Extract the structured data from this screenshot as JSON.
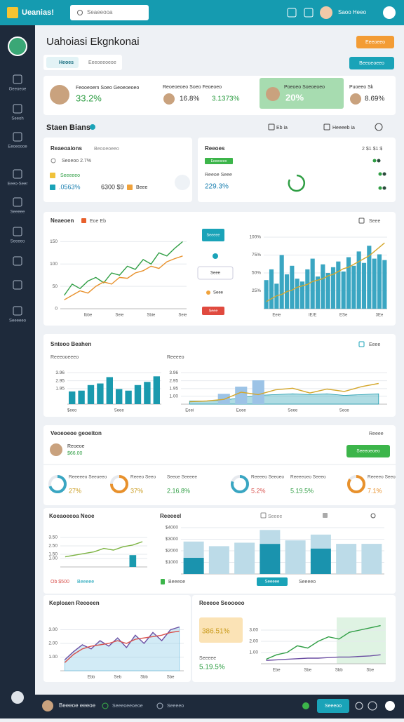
{
  "header": {
    "app_name": "Ueanias!",
    "search": "Seaeeooa",
    "user": "Saoo Heeo"
  },
  "sidebar": {
    "items": [
      "Geeoeoe",
      "Seeoh",
      "Eeoeoooe",
      "Eeeo-Seer",
      "Seeeee",
      "Seeeeo",
      "Seeeeeo"
    ]
  },
  "page": {
    "title": "Uahoiasi Ekgnkonai",
    "button_primary": "Eeeoeeo",
    "button_secondary": "Beeoeoeeo",
    "tabs": [
      "Heoes",
      "Eeeoeeoeoe"
    ]
  },
  "kpis": [
    {
      "label": "Feooeoem Soeo Geoeoeoeo",
      "value": "33.2%"
    },
    {
      "label": "Reoeoeoeo Soeo Feoeoeo",
      "value": "16.8%",
      "value2": "3.1373%"
    },
    {
      "label": "Poeoeo Soeoeoeo",
      "value": "20%"
    },
    {
      "label": "Puoeeo Sk",
      "value": "8.69%"
    }
  ],
  "status": {
    "title": "Staen Bians",
    "filter_1": "Eb ia",
    "filter_2": "Heeeeb ia"
  },
  "relations": {
    "title": "Reaeoaions",
    "subtitle": "Beooeoeeo",
    "row_1": "Seoeoo 2.7%",
    "row_2": "Seeeeeo",
    "value": ".0563%",
    "amount": "6300 $9",
    "extra": "Beee"
  },
  "reports": {
    "title": "Reeoes",
    "counts": "2 $1 $1 $",
    "badge": "Eeeeoeeo",
    "label": "Reeoe Seee",
    "value": "229.3%"
  },
  "overview": {
    "title": "Neaeoen",
    "legend": "Eoe Eb",
    "action": "Seee",
    "side": [
      "Seeeee",
      "Seee",
      "Seee",
      "Seee"
    ],
    "chart_a": {
      "type": "line",
      "ylim": [
        0,
        160
      ],
      "yticks": [
        0,
        50,
        100,
        150
      ],
      "categories": [
        null,
        null,
        null,
        "Ibbe",
        null,
        null,
        null,
        "Seie",
        null,
        null,
        null,
        "Sbie",
        null,
        null,
        null,
        "Seie"
      ],
      "series": [
        {
          "type": "line",
          "color": "#2f9e44",
          "values": [
            30,
            55,
            45,
            62,
            70,
            58,
            80,
            75,
            95,
            88,
            110,
            100,
            125,
            118,
            135,
            150
          ]
        },
        {
          "type": "line",
          "color": "#e8912c",
          "values": [
            20,
            30,
            40,
            35,
            50,
            60,
            55,
            70,
            68,
            80,
            85,
            95,
            90,
            105,
            112,
            118
          ]
        }
      ]
    },
    "chart_b": {
      "type": "bar",
      "ylim": [
        0,
        100
      ],
      "yticks": [
        {
          "value": 25,
          "label": "25%"
        },
        {
          "value": 50,
          "label": "50%"
        },
        {
          "value": 75,
          "label": "75%"
        },
        {
          "value": 100,
          "label": "100%"
        }
      ],
      "categories": [
        null,
        null,
        "Eeie",
        null,
        null,
        null,
        null,
        null,
        null,
        "IE/E",
        null,
        null,
        null,
        null,
        null,
        "ESe",
        null,
        null,
        null,
        null,
        null,
        null,
        "3Ee",
        null
      ],
      "series": [
        {
          "type": "bar",
          "color": "#3aa6c2",
          "values": [
            40,
            55,
            35,
            75,
            48,
            60,
            42,
            38,
            55,
            70,
            45,
            62,
            50,
            58,
            66,
            52,
            72,
            60,
            80,
            64,
            88,
            70,
            76,
            68
          ]
        },
        {
          "type": "line",
          "color": "#d4a72c",
          "values": [
            10,
            14,
            18,
            20,
            24,
            26,
            30,
            32,
            34,
            38,
            40,
            42,
            46,
            48,
            52,
            56,
            58,
            62,
            66,
            70,
            74,
            80,
            86,
            92
          ]
        }
      ]
    }
  },
  "section2": {
    "title": "Snteoo Beahen",
    "action": "Eeee",
    "chart_c": {
      "title": "Reeeooeeeo",
      "type": "bar",
      "ylim": [
        0,
        4.5
      ],
      "yticks": [
        1.95,
        2.95,
        3.96
      ],
      "categories": [
        "$eeo",
        null,
        null,
        null,
        null,
        "Seee",
        null,
        null,
        null,
        null
      ],
      "series": [
        {
          "type": "bar",
          "color": "#1a9aae",
          "values": [
            1.6,
            1.7,
            2.4,
            2.6,
            3.4,
            1.9,
            1.7,
            2.4,
            2.8,
            3.5
          ]
        }
      ]
    },
    "chart_e": {
      "title": "Reeeeo",
      "type": "line",
      "ylim": [
        0,
        4.5
      ],
      "yticks": [
        {
          "value": 1,
          "label": "1.00"
        },
        1.95,
        2.95,
        3.96
      ],
      "categories": [
        "Eeei",
        null,
        null,
        "Eoee",
        null,
        null,
        "Seee",
        null,
        null,
        "Seoe",
        null,
        null
      ],
      "series": [
        {
          "type": "area",
          "color": "#1a9aae",
          "values": [
            0.4,
            0.4,
            0.5,
            0.8,
            1.1,
            1.2,
            1.3,
            1.2,
            1.3,
            1.1,
            1.2,
            1.3
          ]
        },
        {
          "type": "bar",
          "color": "#9cc3e6",
          "values": [
            null,
            null,
            1.3,
            2.2,
            3.0,
            null,
            null,
            null,
            null,
            null,
            null,
            null
          ]
        },
        {
          "type": "line",
          "color": "#d4a72c",
          "values": [
            0.3,
            0.4,
            0.6,
            1.5,
            1.2,
            1.8,
            2.0,
            1.4,
            1.9,
            1.6,
            2.2,
            2.6
          ]
        }
      ]
    }
  },
  "section3": {
    "title": "Veoeoeoe geoeiton",
    "action": "Reeee",
    "person": "Reoeoe",
    "amount": "$66.00",
    "button": "Seeeoeoeo",
    "donuts": [
      {
        "label": "Reeeeeo Seeoeeo",
        "value": "27%",
        "fill": 70,
        "color": "#3aa6c2"
      },
      {
        "label": "Reeeo Seeo",
        "value": "37%",
        "fill": 75,
        "color": "#e8912c"
      },
      {
        "label": "Reeeeo Seeoeo",
        "value": "5.2%",
        "fill": 80,
        "color": "#3aa6c2"
      },
      {
        "label": "Reeeeo Seeo",
        "value": "7.1%",
        "fill": 85,
        "color": "#e8912c"
      }
    ],
    "stats": [
      {
        "label": "Seeoe Seeeee",
        "value": "2.16.8%"
      },
      {
        "label": "Reeeeoeo Seeeo",
        "value": "5.19.5%"
      }
    ]
  },
  "section4": {
    "chart_f": {
      "title": "Koeaoeeoa Neoe",
      "type": "line",
      "ylim": [
        0,
        4
      ],
      "yticks": [
        {
          "value": 1,
          "label": "1.00"
        },
        {
          "value": 1.5,
          "label": "1.50"
        },
        {
          "value": 2.5,
          "label": "2.50"
        },
        {
          "value": 3.5,
          "label": "3.50"
        }
      ],
      "categories": [
        null,
        null,
        null,
        null,
        null,
        null,
        null,
        null,
        null
      ],
      "series": [
        {
          "type": "bar",
          "color": "#1a9aae",
          "values": [
            null,
            null,
            null,
            null,
            null,
            null,
            null,
            1.4,
            null
          ]
        },
        {
          "type": "line",
          "color": "#7cb342",
          "values": [
            1.2,
            1.4,
            1.6,
            1.8,
            2.2,
            2.0,
            2.4,
            2.6,
            3.0
          ]
        }
      ],
      "legend": [
        "Ob $500",
        "Beeeee"
      ]
    },
    "chart_g": {
      "title": "Reeeeel",
      "type": "bar",
      "stacked": true,
      "ylim": [
        0,
        4000
      ],
      "yticks": [
        {
          "value": 1000,
          "label": "$1000"
        },
        {
          "value": 2000,
          "label": "$2000"
        },
        {
          "value": 3000,
          "label": "$3000"
        },
        {
          "value": 4000,
          "label": "$4000"
        }
      ],
      "categories": [
        null,
        null,
        null,
        null,
        null,
        null,
        null,
        null
      ],
      "series": [
        {
          "type": "bar",
          "color": "#1a93ae",
          "values": [
            1400,
            0,
            0,
            2600,
            0,
            2200,
            0,
            0
          ]
        },
        {
          "type": "bar",
          "color": "#bcdbe8",
          "values": [
            1400,
            2400,
            2700,
            1200,
            2900,
            1200,
            2600,
            2600
          ]
        }
      ],
      "actions": [
        "Seeee"
      ],
      "legend": [
        "Beeeoe",
        "Seeeee",
        "Seeeeo"
      ]
    }
  },
  "section5": {
    "chart_h": {
      "title": "Keploaen Reeoeen",
      "type": "line",
      "ylim": [
        0,
        4
      ],
      "yticks": [
        {
          "value": 1,
          "label": "1.00"
        },
        {
          "value": 2,
          "label": "2.00"
        },
        {
          "value": 3,
          "label": "3.00"
        }
      ],
      "categories": [
        null,
        null,
        null,
        "Ebb",
        null,
        null,
        "Seb",
        null,
        null,
        "Sbb",
        null,
        null,
        "Sbe",
        null
      ],
      "series": [
        {
          "type": "area",
          "color": "#7fc6e4",
          "values": [
            0.8,
            1.4,
            1.9,
            1.6,
            2.2,
            1.8,
            2.4,
            1.7,
            2.6,
            2.0,
            2.8,
            2.2,
            3.0,
            3.2
          ]
        },
        {
          "type": "line",
          "color": "#6c4fa3",
          "values": [
            0.8,
            1.4,
            1.9,
            1.6,
            2.2,
            1.8,
            2.4,
            1.7,
            2.6,
            2.0,
            2.8,
            2.2,
            3.0,
            3.2
          ]
        },
        {
          "type": "line",
          "color": "#d9534f",
          "values": [
            0.6,
            1.2,
            1.6,
            1.8,
            1.9,
            2.0,
            2.2,
            2.0,
            2.3,
            2.4,
            2.5,
            2.6,
            2.8,
            2.9
          ]
        }
      ]
    },
    "chart_i": {
      "title": "Reeeoe Seoooeo",
      "type": "line",
      "highlight": "386.51%",
      "label": "Seeeee",
      "value": "5.19.5%",
      "ylim": [
        0,
        4
      ],
      "yticks": [
        {
          "value": 1,
          "label": "1.00"
        },
        {
          "value": 2,
          "label": "2.00"
        },
        {
          "value": 3,
          "label": "3.00"
        }
      ],
      "categories": [
        null,
        "Ebe",
        null,
        null,
        "Sbe",
        null,
        null,
        "Sbb",
        null,
        null,
        "Sbe",
        null
      ],
      "series": [
        {
          "type": "line",
          "color": "#2f9e44",
          "values": [
            0.4,
            0.8,
            1.0,
            1.6,
            1.4,
            2.0,
            2.4,
            2.2,
            2.8,
            3.0,
            3.2,
            3.4
          ]
        },
        {
          "type": "line",
          "color": "#6c4fa3",
          "values": [
            0.3,
            0.35,
            0.4,
            0.45,
            0.5,
            0.5,
            0.55,
            0.6,
            0.6,
            0.65,
            0.7,
            0.8
          ]
        }
      ]
    }
  },
  "footer": {
    "user": "Beeeoe eeeoe",
    "link_1": "Seeeoeeoeoe",
    "link_2": "Seeeeo",
    "button": "Seeeoo"
  }
}
